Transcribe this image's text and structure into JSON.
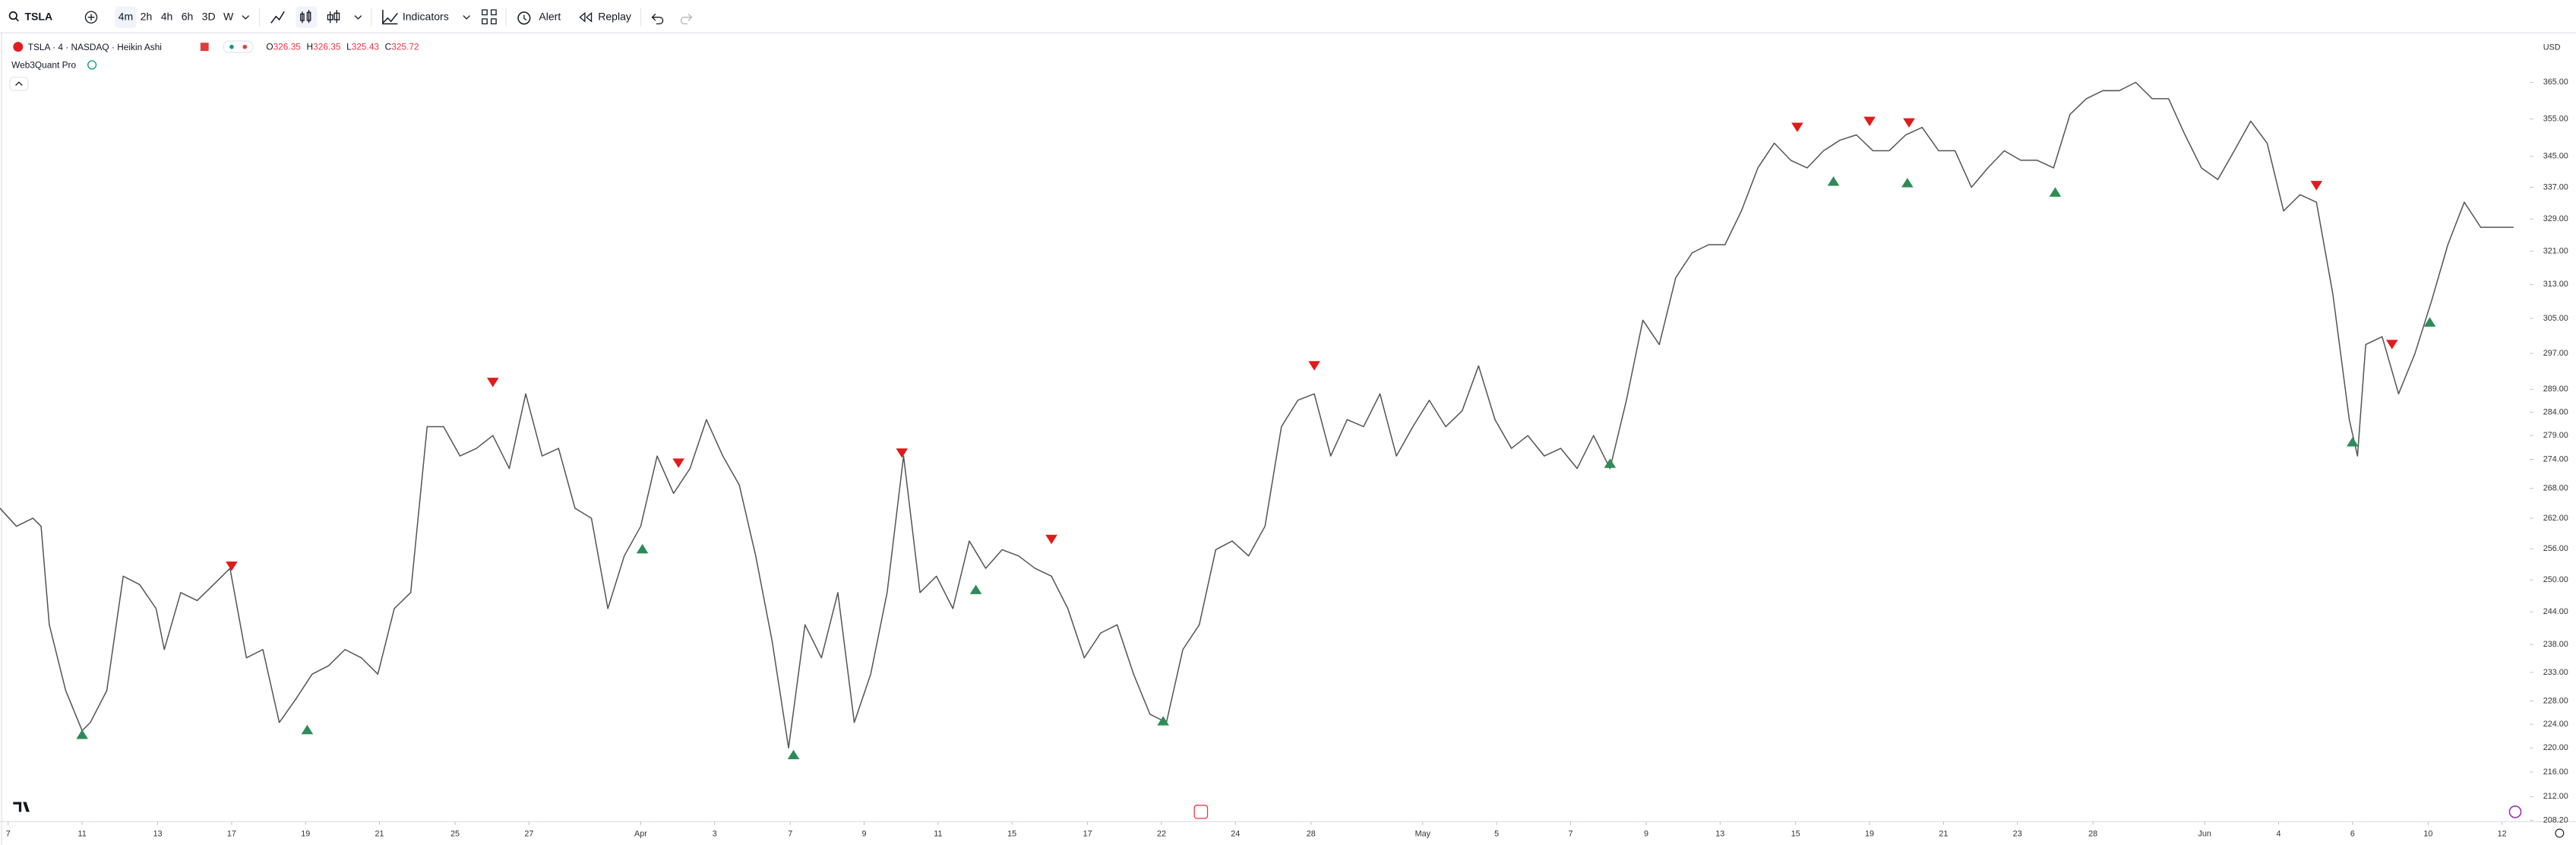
{
  "toolbar": {
    "symbol": "TSLA",
    "intervals": [
      "4m",
      "2h",
      "4h",
      "6h",
      "3D",
      "W"
    ],
    "indicators": "Indicators",
    "alert": "Alert",
    "replay": "Replay"
  },
  "legend": {
    "title": "TSLA · 4 · NASDAQ · Heikin Ashi",
    "ohlc": [
      {
        "label": "O",
        "value": "326.35"
      },
      {
        "label": "H",
        "value": "326.35"
      },
      {
        "label": "L",
        "value": "325.43"
      },
      {
        "label": "C",
        "value": "325.72"
      }
    ],
    "indicator": "Web3Quant Pro"
  },
  "chart_data": {
    "type": "line",
    "currency": "USD",
    "color": "#555555",
    "log_scale": true,
    "x": [
      0,
      10,
      20,
      25,
      30,
      40,
      50,
      55,
      65,
      75,
      85,
      95,
      100,
      110,
      120,
      130,
      140,
      150,
      160,
      170,
      180,
      190,
      200,
      210,
      220,
      230,
      240,
      250,
      260,
      270,
      280,
      290,
      300,
      310,
      320,
      330,
      340,
      350,
      360,
      370,
      380,
      390,
      400,
      410,
      420,
      430,
      440,
      450,
      460,
      470,
      480,
      490,
      500,
      510,
      520,
      530,
      540,
      550,
      560,
      570,
      580,
      590,
      600,
      610,
      620,
      630,
      640,
      650,
      660,
      670,
      680,
      690,
      700,
      710,
      720,
      730,
      740,
      750,
      760,
      770,
      780,
      790,
      800,
      810,
      820,
      830,
      840,
      850,
      860,
      870,
      880,
      890,
      900,
      910,
      920,
      930,
      940,
      950,
      960,
      970,
      980,
      990,
      1000,
      1010,
      1020,
      1030,
      1040,
      1050,
      1060,
      1070,
      1080,
      1090,
      1100,
      1110,
      1120,
      1130,
      1140,
      1150,
      1160,
      1170,
      1180,
      1190,
      1200,
      1210,
      1220,
      1230,
      1240,
      1250,
      1260,
      1270,
      1280,
      1290,
      1300,
      1310,
      1320,
      1330,
      1340,
      1350,
      1360,
      1370,
      1380,
      1390,
      1400,
      1410,
      1420,
      1430,
      1435,
      1440,
      1450,
      1460,
      1470,
      1480,
      1490,
      1500,
      1510,
      1520,
      1530
    ],
    "values": [
      264,
      260.4,
      262,
      260.4,
      241.6,
      229.8,
      222.9,
      224.3,
      229.8,
      250.7,
      249.1,
      244.6,
      237.1,
      247.6,
      246.1,
      249.1,
      252.2,
      235.6,
      237.1,
      224.3,
      228.3,
      232.7,
      234.2,
      237.1,
      235.6,
      232.7,
      244.6,
      247.6,
      280.9,
      280.9,
      274.7,
      276.3,
      279,
      272.1,
      288,
      274.7,
      276.3,
      264,
      262,
      244.6,
      254.6,
      260.4,
      274.7,
      267,
      272.1,
      282.4,
      274.7,
      268.7,
      254.6,
      238.6,
      220,
      241.6,
      235.6,
      247.6,
      224.3,
      232.7,
      247.6,
      274.7,
      247.6,
      250.7,
      244.6,
      257.5,
      252.2,
      255.8,
      254.6,
      252.2,
      250.7,
      244.6,
      235.6,
      240.1,
      241.6,
      232.7,
      225.7,
      224.3,
      237.1,
      241.6,
      255.8,
      257.5,
      254.6,
      260.4,
      280.9,
      286.6,
      288,
      274.7,
      282.4,
      280.9,
      288,
      274.7,
      280.9,
      286.6,
      280.9,
      284.3,
      294.2,
      282.4,
      276.3,
      279,
      274.7,
      276.3,
      272.1,
      279,
      272.1,
      286.6,
      304.6,
      299,
      314.6,
      320.6,
      322.6,
      322.6,
      331,
      342,
      348.5,
      344,
      342,
      346.5,
      349.3,
      350.7,
      346.5,
      346.5,
      350.7,
      352.7,
      346.5,
      346.5,
      337,
      342,
      346.5,
      344,
      344,
      342,
      356.2,
      360.5,
      362.7,
      362.7,
      365,
      360.5,
      360.5,
      350.7,
      342,
      339,
      346.5,
      354.4,
      348.5,
      331,
      335.1,
      333.2,
      310.7,
      282.4,
      274.7,
      299,
      300.8,
      288,
      297,
      309,
      322.6,
      333.2,
      326.9,
      326.9,
      326.9
    ],
    "markers": {
      "sell": {
        "color": "#e01b1b",
        "x": [
          141,
          300,
          413,
          549,
          640,
          800,
          1094,
          1138,
          1162,
          1410,
          1456
        ],
        "values": [
          252.6,
          290.5,
          273.2,
          275.3,
          257.8,
          294.2,
          352.7,
          354.3,
          353.9,
          337.4,
          299
        ]
      },
      "buy": {
        "color": "#2e8b57",
        "x": [
          50,
          187,
          391,
          483,
          594,
          708,
          980,
          1116,
          1161,
          1251,
          1432,
          1479
        ],
        "values": [
          222.3,
          223.1,
          256,
          218.9,
          248.2,
          224.6,
          273.2,
          338.6,
          338.2,
          335.8,
          277.7,
          304.2
        ]
      }
    },
    "xlim": [
      0,
      1540
    ],
    "ylim": [
      208,
      379
    ],
    "yticks": [
      {
        "value": 365,
        "label": "365.00"
      },
      {
        "value": 355,
        "label": "355.00"
      },
      {
        "value": 345,
        "label": "345.00"
      },
      {
        "value": 337,
        "label": "337.00"
      },
      {
        "value": 329,
        "label": "329.00"
      },
      {
        "value": 321,
        "label": "321.00"
      },
      {
        "value": 313,
        "label": "313.00"
      },
      {
        "value": 305,
        "label": "305.00"
      },
      {
        "value": 297,
        "label": "297.00"
      },
      {
        "value": 289,
        "label": "289.00"
      },
      {
        "value": 284,
        "label": "284.00"
      },
      {
        "value": 279,
        "label": "279.00"
      },
      {
        "value": 274,
        "label": "274.00"
      },
      {
        "value": 268,
        "label": "268.00"
      },
      {
        "value": 262,
        "label": "262.00"
      },
      {
        "value": 256,
        "label": "256.00"
      },
      {
        "value": 250,
        "label": "250.00"
      },
      {
        "value": 244,
        "label": "244.00"
      },
      {
        "value": 238,
        "label": "238.00"
      },
      {
        "value": 233,
        "label": "233.00"
      },
      {
        "value": 228,
        "label": "228.00"
      },
      {
        "value": 224,
        "label": "224.00"
      },
      {
        "value": 220,
        "label": "220.00"
      },
      {
        "value": 216,
        "label": "216.00"
      },
      {
        "value": 212,
        "label": "212.00"
      },
      {
        "value": 208.2,
        "label": "208.20"
      }
    ],
    "xticks": [
      {
        "value": 5,
        "label": "7"
      },
      {
        "value": 50,
        "label": "11"
      },
      {
        "value": 96,
        "label": "13"
      },
      {
        "value": 141,
        "label": "17"
      },
      {
        "value": 186,
        "label": "19"
      },
      {
        "value": 231,
        "label": "21"
      },
      {
        "value": 277,
        "label": "25"
      },
      {
        "value": 322,
        "label": "27"
      },
      {
        "value": 390,
        "label": "Apr"
      },
      {
        "value": 435,
        "label": "3"
      },
      {
        "value": 481,
        "label": "7"
      },
      {
        "value": 526,
        "label": "9"
      },
      {
        "value": 571,
        "label": "11"
      },
      {
        "value": 616,
        "label": "15"
      },
      {
        "value": 662,
        "label": "17"
      },
      {
        "value": 707,
        "label": "22"
      },
      {
        "value": 752,
        "label": "24"
      },
      {
        "value": 798,
        "label": "28"
      },
      {
        "value": 866,
        "label": "May"
      },
      {
        "value": 911,
        "label": "5"
      },
      {
        "value": 956,
        "label": "7"
      },
      {
        "value": 1002,
        "label": "9"
      },
      {
        "value": 1047,
        "label": "13"
      },
      {
        "value": 1093,
        "label": "15"
      },
      {
        "value": 1138,
        "label": "19"
      },
      {
        "value": 1183,
        "label": "21"
      },
      {
        "value": 1228,
        "label": "23"
      },
      {
        "value": 1274,
        "label": "28"
      },
      {
        "value": 1342,
        "label": "Jun"
      },
      {
        "value": 1387,
        "label": "4"
      },
      {
        "value": 1432,
        "label": "6"
      },
      {
        "value": 1478,
        "label": "10"
      },
      {
        "value": 1523,
        "label": "12"
      }
    ]
  }
}
